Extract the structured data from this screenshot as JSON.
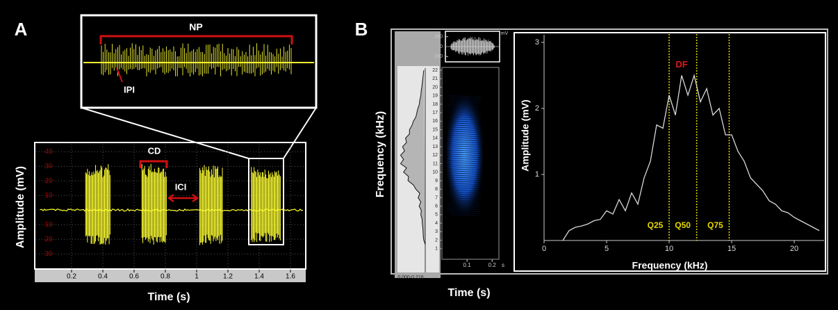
{
  "chart_data": [
    {
      "type": "waveform",
      "panel_label": "A",
      "xlabel": "Time (s)",
      "ylabel": "Amplitude (mV)",
      "xlim": [
        0,
        1.68
      ],
      "ylim": [
        -38,
        42
      ],
      "xticks": [
        0.2,
        0.4,
        0.6,
        0.8,
        1,
        1.2,
        1.4,
        1.6
      ],
      "yticks": [
        {
          "value": -30,
          "label": "30"
        },
        {
          "value": -20,
          "label": "20"
        },
        {
          "value": -10,
          "label": "10"
        },
        10,
        20,
        30,
        40
      ],
      "color": "#ffff33",
      "bursts": {
        "start": [
          0.29,
          0.65,
          1.02,
          1.35
        ],
        "end": [
          0.45,
          0.81,
          1.17,
          1.54
        ],
        "max": [
          32,
          32,
          31,
          30
        ],
        "min": [
          -24,
          -24,
          -24,
          -22
        ]
      },
      "annotations": {
        "duration": "CD",
        "interval": "ICI"
      },
      "inset": {
        "annotations": {
          "pulses": "NP",
          "interval": "IPI"
        }
      }
    },
    {
      "type": "oscillogram",
      "unit": "mV",
      "xlim": [
        0,
        0.216
      ],
      "ylim": [
        -280,
        280
      ],
      "yticks": [
        200,
        0,
        -200
      ],
      "color": "#dddddd",
      "burst": {
        "start": 0.015,
        "end": 0.2,
        "max": 200,
        "min": -190
      }
    },
    {
      "type": "spectrogram",
      "panel_label": "B",
      "xlabel": "Time (s)",
      "ylabel": "Frequency (kHz)",
      "x_unit": "s",
      "xlim": [
        0,
        0.216
      ],
      "ylim": [
        0,
        22
      ],
      "xticks": [
        0.1,
        0.2
      ],
      "yticks": [
        1,
        2,
        3,
        4,
        5,
        6,
        7,
        8,
        9,
        10,
        11,
        12,
        13,
        14,
        15,
        16,
        17,
        18,
        19,
        20,
        21,
        22
      ],
      "energy": {
        "start": 0.02,
        "end": 0.16,
        "low": 5,
        "high": 19
      },
      "power_range_label": "0.000-0.216"
    },
    {
      "type": "line",
      "xlabel": "Frequency (kHz)",
      "ylabel": "Amplitude (mV)",
      "color": "#d8d8d8",
      "xlim": [
        0,
        22
      ],
      "ylim": [
        0,
        3.1
      ],
      "xticks": [
        0,
        5,
        10,
        15,
        20
      ],
      "yticks": [
        1,
        2,
        3
      ],
      "x": [
        1.5,
        2,
        2.5,
        3,
        3.5,
        4,
        4.5,
        5,
        5.5,
        6,
        6.5,
        7,
        7.5,
        8,
        8.5,
        9,
        9.5,
        10,
        10.5,
        11,
        11.5,
        12,
        12.5,
        13,
        13.5,
        14,
        14.5,
        15,
        15.5,
        16,
        16.5,
        17,
        17.5,
        18,
        18.5,
        19,
        19.5,
        20,
        20.5,
        21,
        21.5,
        22
      ],
      "values": [
        0,
        0.15,
        0.2,
        0.22,
        0.25,
        0.3,
        0.32,
        0.45,
        0.4,
        0.62,
        0.45,
        0.72,
        0.55,
        0.95,
        1.2,
        1.75,
        1.7,
        2.2,
        1.9,
        2.5,
        2.2,
        2.5,
        2.1,
        2.3,
        1.9,
        2.0,
        1.6,
        1.6,
        1.35,
        1.2,
        0.95,
        0.85,
        0.75,
        0.6,
        0.55,
        0.45,
        0.42,
        0.35,
        0.3,
        0.25,
        0.2,
        0.15
      ],
      "quartiles": [
        {
          "name": "Q25",
          "value": 10
        },
        {
          "name": "Q50",
          "value": 12.2
        },
        {
          "name": "Q75",
          "value": 14.8
        }
      ],
      "peak": {
        "name": "DF",
        "x": 11,
        "value": 2.5
      }
    }
  ]
}
